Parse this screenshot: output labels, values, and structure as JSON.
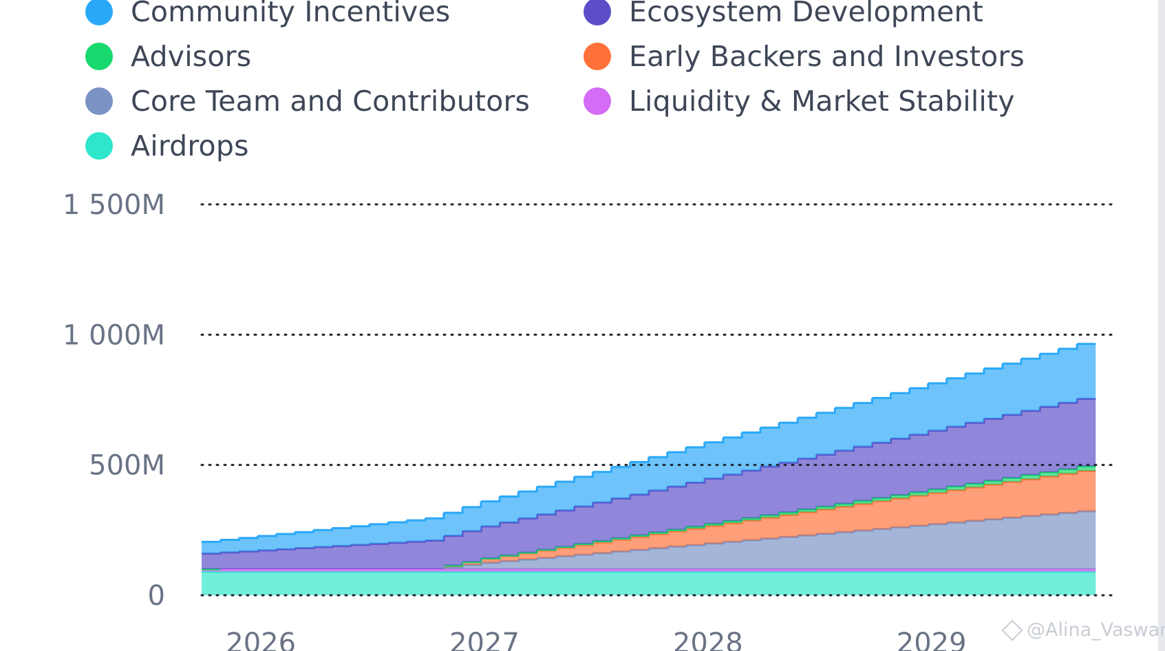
{
  "chart_data": {
    "type": "area",
    "stacked": true,
    "step": true,
    "title": "",
    "xlabel": "",
    "ylabel": "",
    "ylim": [
      0,
      1500
    ],
    "y_ticks": [
      0,
      500,
      1000,
      1500
    ],
    "y_tick_labels": [
      "0",
      "500M",
      "1 000M",
      "1 500M"
    ],
    "x_range": [
      2025.75,
      2029.77
    ],
    "x_ticks": [
      2026,
      2027,
      2028,
      2029
    ],
    "x_tick_labels": [
      "2026",
      "2027",
      "2028",
      "2029"
    ],
    "grid": "horizontal-dotted",
    "legend_position": "top",
    "watermark": "@Alina_Vaswani",
    "series": [
      {
        "name": "Airdrops",
        "color": "#2ee6cc",
        "start": 2025.75,
        "breakpoints": [
          [
            2025.75,
            90
          ],
          [
            2029.77,
            90
          ]
        ]
      },
      {
        "name": "Liquidity & Market Stability",
        "color": "#d46cf5",
        "start": 2025.75,
        "breakpoints": [
          [
            2025.75,
            10
          ],
          [
            2029.77,
            10
          ]
        ]
      },
      {
        "name": "Core Team and Contributors",
        "color": "#7b92c4",
        "start": 2026.75,
        "breakpoints": [
          [
            2026.75,
            0
          ],
          [
            2027.0,
            25
          ],
          [
            2029.77,
            230
          ]
        ]
      },
      {
        "name": "Early Backers and Investors",
        "color": "#ff7139",
        "start": 2026.75,
        "breakpoints": [
          [
            2026.75,
            0
          ],
          [
            2027.0,
            15
          ],
          [
            2029.77,
            160
          ]
        ]
      },
      {
        "name": "Advisors",
        "color": "#19d96e",
        "start": 2026.75,
        "breakpoints": [
          [
            2026.75,
            0
          ],
          [
            2029.77,
            18
          ]
        ]
      },
      {
        "name": "Ecosystem Development",
        "color": "#5b4ec8",
        "start": 2025.75,
        "breakpoints": [
          [
            2025.75,
            60
          ],
          [
            2026.75,
            110
          ],
          [
            2029.77,
            265
          ]
        ]
      },
      {
        "name": "Community Incentives",
        "color": "#2aa8f8",
        "start": 2025.75,
        "breakpoints": [
          [
            2025.75,
            45
          ],
          [
            2026.75,
            85
          ],
          [
            2029.77,
            215
          ]
        ]
      }
    ]
  },
  "legend": {
    "items": [
      {
        "label": "Community Incentives",
        "color": "#2aa8f8"
      },
      {
        "label": "Ecosystem Development",
        "color": "#5b4ec8"
      },
      {
        "label": "Advisors",
        "color": "#19d96e"
      },
      {
        "label": "Early Backers and Investors",
        "color": "#ff7139"
      },
      {
        "label": "Core Team and Contributors",
        "color": "#7b92c4"
      },
      {
        "label": "Liquidity & Market Stability",
        "color": "#d46cf5"
      },
      {
        "label": "Airdrops",
        "color": "#2ee6cc"
      }
    ]
  }
}
